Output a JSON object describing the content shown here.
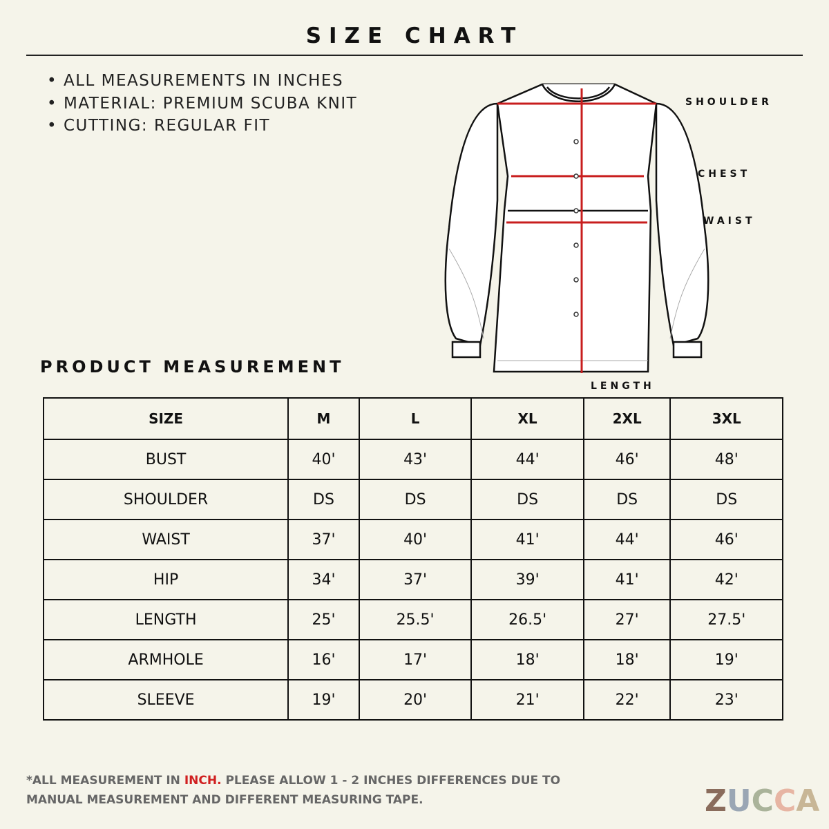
{
  "header": {
    "title": "SIZE CHART"
  },
  "notes": [
    "ALL MEASUREMENTS IN INCHES",
    "MATERIAL: PREMIUM SCUBA KNIT",
    "CUTTING: REGULAR FIT"
  ],
  "diagram": {
    "labels": {
      "shoulder": "SHOULDER",
      "chest": "CHEST",
      "waist": "WAIST",
      "length": "LENGTH"
    }
  },
  "section_title": "PRODUCT MEASUREMENT",
  "table": {
    "header": [
      "SIZE",
      "M",
      "L",
      "XL",
      "2XL",
      "3XL"
    ],
    "rows": [
      [
        "BUST",
        "40'",
        "43'",
        "44'",
        "46'",
        "48'"
      ],
      [
        "SHOULDER",
        "DS",
        "DS",
        "DS",
        "DS",
        "DS"
      ],
      [
        "WAIST",
        "37'",
        "40'",
        "41'",
        "44'",
        "46'"
      ],
      [
        "HIP",
        "34'",
        "37'",
        "39'",
        "41'",
        "42'"
      ],
      [
        "LENGTH",
        "25'",
        "25.5'",
        "26.5'",
        "27'",
        "27.5'"
      ],
      [
        "ARMHOLE",
        "16'",
        "17'",
        "18'",
        "18'",
        "19'"
      ],
      [
        "SLEEVE",
        "19'",
        "20'",
        "21'",
        "22'",
        "23'"
      ]
    ]
  },
  "footnote": {
    "before": "*ALL MEASUREMENT IN ",
    "highlight": "INCH.",
    "after": " PLEASE ALLOW 1 - 2 INCHES DIFFERENCES DUE TO MANUAL MEASUREMENT AND DIFFERENT MEASURING TAPE."
  },
  "logo": [
    "Z",
    "U",
    "C",
    "C",
    "A"
  ]
}
